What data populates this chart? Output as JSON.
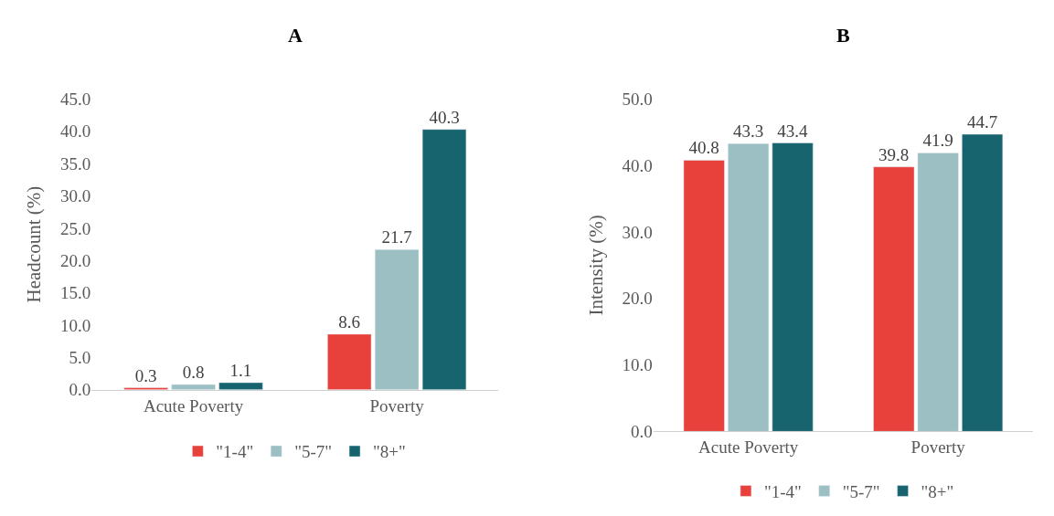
{
  "chart_data": [
    {
      "type": "bar",
      "title": "A",
      "ylabel": "Headcount (%)",
      "categories": [
        "Acute Poverty",
        "Poverty"
      ],
      "series": [
        {
          "name": "\"1-4\"",
          "color": "#e8403a",
          "values": [
            0.3,
            8.6
          ]
        },
        {
          "name": "\"5-7\"",
          "color": "#9bbfc2",
          "values": [
            0.8,
            21.7
          ]
        },
        {
          "name": "\"8+\"",
          "color": "#17646e",
          "values": [
            1.1,
            40.3
          ]
        }
      ],
      "ylim": [
        0,
        45
      ],
      "yticks": [
        {
          "value": 0,
          "label": "0.0"
        },
        {
          "value": 5,
          "label": "5.0"
        },
        {
          "value": 10,
          "label": "10.0"
        },
        {
          "value": 15,
          "label": "15.0"
        },
        {
          "value": 20,
          "label": "20.0"
        },
        {
          "value": 25,
          "label": "25.0"
        },
        {
          "value": 30,
          "label": "30.0"
        },
        {
          "value": 35,
          "label": "35.0"
        },
        {
          "value": 40,
          "label": "40.0"
        },
        {
          "value": 45,
          "label": "45.0"
        }
      ],
      "data_labels": true,
      "legend": "bottom"
    },
    {
      "type": "bar",
      "title": "B",
      "ylabel": "Intensity (%)",
      "categories": [
        "Acute Poverty",
        "Poverty"
      ],
      "series": [
        {
          "name": "\"1-4\"",
          "color": "#e8403a",
          "values": [
            40.8,
            39.8
          ]
        },
        {
          "name": "\"5-7\"",
          "color": "#9bbfc2",
          "values": [
            43.3,
            41.9
          ]
        },
        {
          "name": "\"8+\"",
          "color": "#17646e",
          "values": [
            43.4,
            44.7
          ]
        }
      ],
      "ylim": [
        0,
        50
      ],
      "yticks": [
        {
          "value": 0,
          "label": "0.0"
        },
        {
          "value": 10,
          "label": "10.0"
        },
        {
          "value": 20,
          "label": "20.0"
        },
        {
          "value": 30,
          "label": "30.0"
        },
        {
          "value": 40,
          "label": "40.0"
        },
        {
          "value": 50,
          "label": "50.0"
        }
      ],
      "data_labels": true,
      "legend": "bottom"
    }
  ]
}
